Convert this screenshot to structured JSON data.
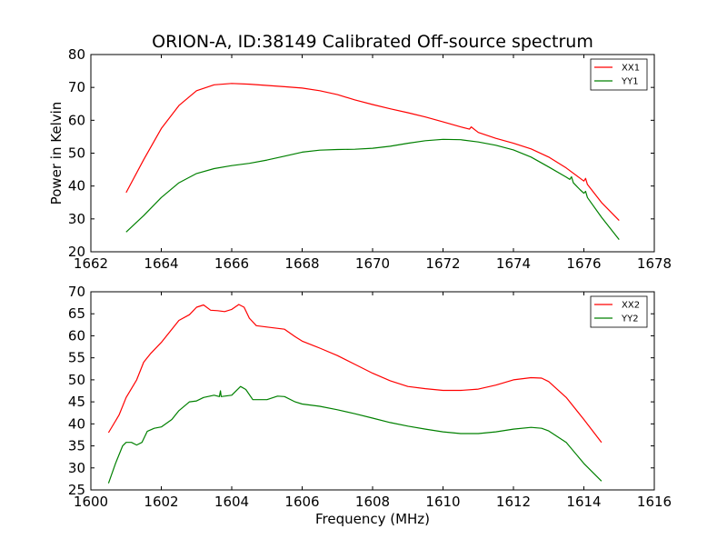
{
  "title": "ORION-A, ID:38149 Calibrated Off-source spectrum",
  "colors": {
    "xx": "#ff0000",
    "yy": "#008000",
    "axes": "#000000",
    "background": "#ffffff"
  },
  "chart_data": [
    {
      "type": "line",
      "ylabel": "Power in Kelvin",
      "xlabel": "",
      "xlim": [
        1662,
        1678
      ],
      "ylim": [
        20,
        80
      ],
      "xticks": [
        "1662",
        "1664",
        "1666",
        "1668",
        "1670",
        "1672",
        "1674",
        "1676",
        "1678"
      ],
      "yticks": [
        "20",
        "30",
        "40",
        "50",
        "60",
        "70",
        "80"
      ],
      "grid": false,
      "legend_position": "top-right",
      "series": [
        {
          "name": "XX1",
          "color": "#ff0000",
          "x": [
            1663.0,
            1663.5,
            1664.0,
            1664.5,
            1665.0,
            1665.5,
            1666.0,
            1666.5,
            1667.0,
            1667.5,
            1668.0,
            1668.5,
            1669.0,
            1669.5,
            1670.0,
            1670.5,
            1671.0,
            1671.5,
            1672.0,
            1672.5,
            1672.75,
            1672.8,
            1673.0,
            1673.5,
            1674.0,
            1674.5,
            1675.0,
            1675.5,
            1675.9,
            1676.0,
            1676.05,
            1676.1,
            1676.5,
            1677.0
          ],
          "y": [
            38,
            48,
            57.5,
            64.5,
            69,
            70.8,
            71.2,
            71,
            70.6,
            70.2,
            69.8,
            69,
            67.8,
            66.2,
            64.8,
            63.5,
            62.3,
            61,
            59.5,
            58,
            57.3,
            58,
            56.3,
            54.5,
            53,
            51.3,
            48.8,
            45.5,
            42.3,
            41.5,
            42.3,
            40.5,
            35,
            29.5
          ]
        },
        {
          "name": "YY1",
          "color": "#008000",
          "x": [
            1663.0,
            1663.5,
            1664.0,
            1664.5,
            1665.0,
            1665.5,
            1666.0,
            1666.5,
            1667.0,
            1667.5,
            1668.0,
            1668.5,
            1669.0,
            1669.5,
            1670.0,
            1670.5,
            1671.0,
            1671.5,
            1672.0,
            1672.5,
            1673.0,
            1673.5,
            1674.0,
            1674.5,
            1675.0,
            1675.5,
            1675.6,
            1675.65,
            1675.7,
            1675.9,
            1676.0,
            1676.05,
            1676.1,
            1676.5,
            1677.0
          ],
          "y": [
            26,
            31,
            36.5,
            41,
            43.8,
            45.3,
            46.2,
            46.9,
            47.9,
            49.1,
            50.3,
            50.9,
            51.1,
            51.2,
            51.5,
            52.1,
            53,
            53.8,
            54.2,
            54.1,
            53.4,
            52.4,
            51,
            48.8,
            45.8,
            42.7,
            42,
            42.8,
            41,
            38.8,
            37.8,
            38.4,
            36.5,
            30.5,
            23.7
          ]
        }
      ]
    },
    {
      "type": "line",
      "ylabel": "",
      "xlabel": "Frequency (MHz)",
      "xlim": [
        1600,
        1616
      ],
      "ylim": [
        25,
        70
      ],
      "xticks": [
        "1600",
        "1602",
        "1604",
        "1606",
        "1608",
        "1610",
        "1612",
        "1614",
        "1616"
      ],
      "yticks": [
        "25",
        "30",
        "35",
        "40",
        "45",
        "50",
        "55",
        "60",
        "65",
        "70"
      ],
      "grid": false,
      "legend_position": "top-right",
      "series": [
        {
          "name": "XX2",
          "color": "#ff0000",
          "x": [
            1600.5,
            1600.8,
            1601.0,
            1601.3,
            1601.5,
            1601.7,
            1602.0,
            1602.3,
            1602.5,
            1602.8,
            1603.0,
            1603.2,
            1603.4,
            1603.6,
            1603.8,
            1604.0,
            1604.2,
            1604.35,
            1604.5,
            1604.7,
            1605.0,
            1605.5,
            1605.8,
            1606.0,
            1606.5,
            1607.0,
            1607.5,
            1608.0,
            1608.5,
            1609.0,
            1609.5,
            1610.0,
            1610.5,
            1611.0,
            1611.5,
            1612.0,
            1612.5,
            1612.8,
            1613.0,
            1613.5,
            1614.0,
            1614.5
          ],
          "y": [
            38,
            42,
            46,
            50,
            54,
            56,
            58.5,
            61.5,
            63.5,
            64.8,
            66.5,
            67,
            65.8,
            65.7,
            65.5,
            66,
            67.1,
            66.5,
            64,
            62.3,
            62,
            61.5,
            59.8,
            58.8,
            57.2,
            55.5,
            53.5,
            51.5,
            49.8,
            48.5,
            48,
            47.6,
            47.6,
            47.9,
            48.8,
            50,
            50.5,
            50.4,
            49.6,
            46,
            41,
            35.8
          ]
        },
        {
          "name": "YY2",
          "color": "#008000",
          "x": [
            1600.5,
            1600.7,
            1600.9,
            1601.0,
            1601.15,
            1601.3,
            1601.45,
            1601.6,
            1601.8,
            1602.0,
            1602.3,
            1602.5,
            1602.8,
            1603.0,
            1603.2,
            1603.5,
            1603.65,
            1603.68,
            1603.7,
            1604.0,
            1604.25,
            1604.4,
            1604.6,
            1605.0,
            1605.3,
            1605.5,
            1605.8,
            1606.0,
            1606.5,
            1607.0,
            1607.5,
            1608.0,
            1608.5,
            1609.0,
            1609.5,
            1610.0,
            1610.5,
            1611.0,
            1611.5,
            1612.0,
            1612.5,
            1612.8,
            1613.0,
            1613.5,
            1614.0,
            1614.5
          ],
          "y": [
            26.5,
            31,
            35,
            35.8,
            35.8,
            35.2,
            35.8,
            38.3,
            39,
            39.3,
            41,
            43,
            45,
            45.2,
            46,
            46.5,
            46.2,
            47.5,
            46.2,
            46.5,
            48.5,
            47.8,
            45.5,
            45.5,
            46.3,
            46.2,
            45,
            44.5,
            44,
            43.2,
            42.3,
            41.3,
            40.3,
            39.5,
            38.8,
            38.2,
            37.8,
            37.8,
            38.2,
            38.8,
            39.2,
            39,
            38.4,
            35.8,
            31,
            27
          ]
        }
      ]
    }
  ]
}
